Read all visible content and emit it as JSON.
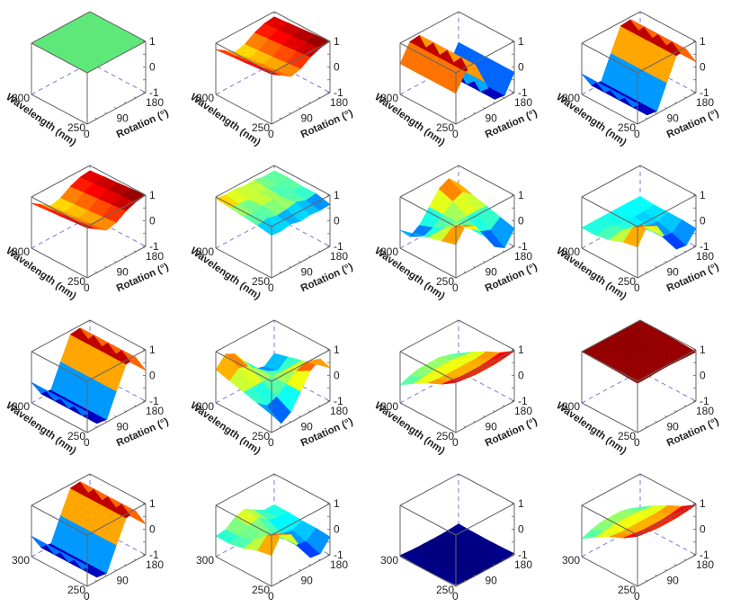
{
  "chart_data": {
    "type": "surface-grid",
    "layout": {
      "rows": 4,
      "cols": 4
    },
    "colormap": "jet",
    "axes": {
      "x": {
        "label": "Rotation (°)",
        "ticks": [
          0,
          90,
          180
        ],
        "range": [
          0,
          180
        ]
      },
      "y": {
        "label": "Wavelength (nm)",
        "ticks": [
          250,
          300
        ],
        "range": [
          250,
          300
        ]
      },
      "z": {
        "label": "",
        "ticks": [
          -1,
          0,
          1
        ],
        "range": [
          -1,
          1
        ]
      }
    },
    "grid_sampling": {
      "rotation": [
        0,
        30,
        60,
        90,
        120,
        150,
        180
      ],
      "wavelength": [
        250,
        262.5,
        275,
        287.5,
        300
      ]
    },
    "panels": [
      {
        "id": 1,
        "row": 1,
        "col": 1,
        "show_axis_titles": true,
        "fixed_color": "#5fe87a",
        "description": "flat surface at z=1",
        "z": [
          [
            1,
            1,
            1,
            1,
            1,
            1,
            1
          ],
          [
            1,
            1,
            1,
            1,
            1,
            1,
            1
          ],
          [
            1,
            1,
            1,
            1,
            1,
            1,
            1
          ],
          [
            1,
            1,
            1,
            1,
            1,
            1,
            1
          ],
          [
            1,
            1,
            1,
            1,
            1,
            1,
            1
          ]
        ]
      },
      {
        "id": 2,
        "row": 1,
        "col": 2,
        "show_axis_titles": true,
        "description": "smooth low-amplitude surface, red/yellow/green",
        "z": [
          [
            0.95,
            0.7,
            0.45,
            0.55,
            0.8,
            0.95,
            1.0
          ],
          [
            0.9,
            0.65,
            0.4,
            0.5,
            0.75,
            0.9,
            0.95
          ],
          [
            0.85,
            0.6,
            0.35,
            0.45,
            0.7,
            0.85,
            0.9
          ],
          [
            0.8,
            0.55,
            0.3,
            0.4,
            0.65,
            0.8,
            0.85
          ],
          [
            0.75,
            0.5,
            0.25,
            0.35,
            0.6,
            0.75,
            0.8
          ]
        ]
      },
      {
        "id": 3,
        "row": 1,
        "col": 3,
        "show_axis_titles": true,
        "description": "stripes along wavelength: red peak ~45°, blue trough ~135°",
        "z": [
          [
            0.2,
            0.85,
            0.9,
            0.0,
            -0.85,
            -0.9,
            -0.2
          ],
          [
            0.2,
            0.85,
            0.9,
            0.0,
            -0.85,
            -0.9,
            -0.2
          ],
          [
            0.2,
            0.85,
            0.9,
            0.0,
            -0.85,
            -0.9,
            -0.2
          ],
          [
            0.2,
            0.85,
            0.9,
            0.0,
            -0.85,
            -0.9,
            -0.2
          ],
          [
            0.2,
            0.85,
            0.9,
            0.0,
            -0.85,
            -0.9,
            -0.2
          ]
        ]
      },
      {
        "id": 4,
        "row": 1,
        "col": 4,
        "show_axis_titles": true,
        "description": "stripes: blue trough ~45°, red peak ~135°",
        "z": [
          [
            -0.2,
            -0.85,
            -0.9,
            0.0,
            0.85,
            0.9,
            0.2
          ],
          [
            -0.2,
            -0.85,
            -0.9,
            0.0,
            0.85,
            0.9,
            0.2
          ],
          [
            -0.2,
            -0.85,
            -0.9,
            0.0,
            0.85,
            0.9,
            0.2
          ],
          [
            -0.2,
            -0.85,
            -0.9,
            0.0,
            0.85,
            0.9,
            0.2
          ],
          [
            -0.2,
            -0.85,
            -0.9,
            0.0,
            0.85,
            0.9,
            0.2
          ]
        ]
      },
      {
        "id": 5,
        "row": 2,
        "col": 1,
        "show_axis_titles": true,
        "description": "smooth low-amplitude surface, red/yellow/green",
        "z": [
          [
            0.95,
            0.7,
            0.45,
            0.55,
            0.8,
            0.95,
            1.0
          ],
          [
            0.9,
            0.65,
            0.4,
            0.5,
            0.75,
            0.9,
            0.95
          ],
          [
            0.85,
            0.6,
            0.35,
            0.45,
            0.7,
            0.85,
            0.9
          ],
          [
            0.8,
            0.55,
            0.3,
            0.4,
            0.65,
            0.8,
            0.85
          ],
          [
            0.75,
            0.5,
            0.25,
            0.35,
            0.6,
            0.75,
            0.8
          ]
        ]
      },
      {
        "id": 6,
        "row": 2,
        "col": 2,
        "show_axis_titles": true,
        "z_offset": 1.0,
        "description": "noisy surface near z=1, mostly cyan with yellow/orange patches and blue at front",
        "z": [
          [
            -0.55,
            -0.7,
            -0.4,
            -0.8,
            -0.6,
            -0.75,
            -0.65
          ],
          [
            -0.2,
            0.1,
            -0.3,
            -0.1,
            0.2,
            -0.35,
            -0.1
          ],
          [
            0.05,
            -0.25,
            0.15,
            0.3,
            -0.2,
            0.0,
            -0.15
          ],
          [
            0.3,
            0.1,
            -0.1,
            0.2,
            0.0,
            -0.2,
            0.05
          ],
          [
            0.55,
            0.35,
            0.4,
            0.1,
            0.2,
            -0.1,
            0.0
          ]
        ]
      },
      {
        "id": 7,
        "row": 2,
        "col": 3,
        "show_axis_titles": true,
        "description": "quadrant pattern: red front-left, blue front-right, blue back-left, orange back-right",
        "z": [
          [
            0.3,
            0.85,
            0.6,
            0.0,
            -0.6,
            -0.85,
            -0.3
          ],
          [
            0.15,
            0.45,
            0.3,
            0.0,
            -0.3,
            -0.45,
            -0.15
          ],
          [
            0.0,
            0.0,
            0.0,
            0.0,
            0.0,
            0.0,
            0.0
          ],
          [
            -0.15,
            -0.45,
            -0.3,
            0.0,
            0.3,
            0.45,
            0.15
          ],
          [
            -0.3,
            -0.75,
            -0.5,
            0.0,
            0.5,
            0.7,
            0.3
          ]
        ]
      },
      {
        "id": 8,
        "row": 2,
        "col": 4,
        "show_axis_titles": true,
        "description": "red front-left, blue front-right, cyan background",
        "z": [
          [
            0.2,
            0.85,
            0.6,
            -0.1,
            -0.7,
            -0.75,
            -0.3
          ],
          [
            0.1,
            0.5,
            0.3,
            -0.1,
            -0.5,
            -0.55,
            -0.25
          ],
          [
            -0.1,
            0.0,
            -0.1,
            -0.2,
            -0.35,
            -0.4,
            -0.25
          ],
          [
            -0.2,
            -0.15,
            -0.2,
            -0.25,
            -0.3,
            -0.3,
            -0.25
          ],
          [
            -0.2,
            -0.2,
            -0.2,
            -0.2,
            -0.2,
            -0.2,
            -0.2
          ]
        ]
      },
      {
        "id": 9,
        "row": 3,
        "col": 1,
        "show_axis_titles": true,
        "description": "stripes: blue trough ~45°, red peak ~135°",
        "z": [
          [
            -0.2,
            -0.85,
            -0.9,
            0.0,
            0.85,
            0.9,
            0.2
          ],
          [
            -0.2,
            -0.85,
            -0.9,
            0.0,
            0.85,
            0.9,
            0.2
          ],
          [
            -0.2,
            -0.85,
            -0.9,
            0.0,
            0.85,
            0.9,
            0.2
          ],
          [
            -0.2,
            -0.85,
            -0.9,
            0.0,
            0.85,
            0.9,
            0.2
          ],
          [
            -0.2,
            -0.85,
            -0.9,
            0.0,
            0.85,
            0.9,
            0.2
          ]
        ]
      },
      {
        "id": 10,
        "row": 3,
        "col": 2,
        "show_axis_titles": true,
        "description": "quadrant pattern: blue front-left, red front-right, orange back-left, blue back-right",
        "z": [
          [
            -0.3,
            -0.85,
            -0.6,
            0.0,
            0.6,
            0.85,
            0.3
          ],
          [
            -0.15,
            -0.45,
            -0.3,
            0.0,
            0.3,
            0.45,
            0.15
          ],
          [
            0.0,
            0.0,
            0.0,
            0.0,
            0.0,
            0.0,
            0.0
          ],
          [
            0.15,
            0.45,
            0.3,
            0.0,
            -0.3,
            -0.45,
            -0.15
          ],
          [
            0.3,
            0.7,
            0.5,
            0.0,
            -0.5,
            -0.6,
            -0.3
          ]
        ]
      },
      {
        "id": 11,
        "row": 3,
        "col": 3,
        "show_axis_titles": true,
        "description": "smooth dome, red at front edge (250 nm), cyan at back (300 nm), yellow center",
        "z": [
          [
            0.95,
            0.9,
            0.85,
            0.85,
            0.85,
            0.9,
            0.95
          ],
          [
            0.6,
            0.55,
            0.5,
            0.5,
            0.5,
            0.55,
            0.6
          ],
          [
            0.35,
            0.3,
            0.3,
            0.3,
            0.3,
            0.3,
            0.35
          ],
          [
            0.05,
            0.1,
            0.15,
            0.15,
            0.15,
            0.1,
            0.05
          ],
          [
            -0.3,
            -0.15,
            -0.05,
            -0.05,
            -0.05,
            -0.15,
            -0.3
          ]
        ]
      },
      {
        "id": 12,
        "row": 3,
        "col": 4,
        "show_axis_titles": true,
        "description": "flat dark-red surface near z=1",
        "z": [
          [
            0.92,
            0.93,
            0.95,
            0.96,
            0.95,
            0.93,
            0.92
          ],
          [
            0.95,
            0.96,
            0.97,
            0.98,
            0.97,
            0.96,
            0.95
          ],
          [
            0.97,
            0.98,
            0.99,
            1.0,
            0.99,
            0.98,
            0.97
          ],
          [
            0.98,
            0.99,
            1.0,
            1.0,
            1.0,
            0.99,
            0.98
          ],
          [
            1.0,
            1.0,
            1.0,
            1.0,
            1.0,
            1.0,
            1.0
          ]
        ]
      },
      {
        "id": 13,
        "row": 4,
        "col": 1,
        "show_axis_titles": false,
        "description": "stripes: blue trough ~45°, red peak ~135°",
        "z": [
          [
            -0.2,
            -0.85,
            -0.9,
            0.0,
            0.85,
            0.9,
            0.2
          ],
          [
            -0.2,
            -0.85,
            -0.9,
            0.0,
            0.85,
            0.9,
            0.2
          ],
          [
            -0.2,
            -0.85,
            -0.9,
            0.0,
            0.85,
            0.9,
            0.2
          ],
          [
            -0.2,
            -0.85,
            -0.9,
            0.0,
            0.85,
            0.9,
            0.2
          ],
          [
            -0.2,
            -0.85,
            -0.9,
            0.0,
            0.85,
            0.9,
            0.2
          ]
        ]
      },
      {
        "id": 14,
        "row": 4,
        "col": 2,
        "show_axis_titles": false,
        "description": "red front-left, blue front-right, cyan/yellow background",
        "z": [
          [
            0.2,
            0.85,
            0.6,
            -0.1,
            -0.7,
            -0.75,
            -0.3
          ],
          [
            0.1,
            0.5,
            0.3,
            -0.1,
            -0.5,
            -0.55,
            -0.25
          ],
          [
            -0.1,
            0.0,
            -0.1,
            -0.2,
            -0.35,
            -0.4,
            -0.25
          ],
          [
            -0.2,
            -0.1,
            0.1,
            0.2,
            -0.1,
            -0.2,
            -0.2
          ],
          [
            -0.2,
            -0.15,
            0.15,
            0.25,
            0.0,
            -0.2,
            -0.2
          ]
        ]
      },
      {
        "id": 15,
        "row": 4,
        "col": 3,
        "show_axis_titles": false,
        "description": "flat blue surface near z=-1",
        "z": [
          [
            -0.95,
            -0.98,
            -1.0,
            -1.0,
            -1.0,
            -0.98,
            -0.95
          ],
          [
            -0.97,
            -1.0,
            -1.0,
            -1.0,
            -1.0,
            -1.0,
            -0.97
          ],
          [
            -0.98,
            -1.0,
            -1.0,
            -1.0,
            -1.0,
            -1.0,
            -0.98
          ],
          [
            -0.97,
            -1.0,
            -1.0,
            -1.0,
            -1.0,
            -1.0,
            -0.97
          ],
          [
            -0.95,
            -0.98,
            -1.0,
            -1.0,
            -1.0,
            -0.98,
            -0.95
          ]
        ]
      },
      {
        "id": 16,
        "row": 4,
        "col": 4,
        "show_axis_titles": false,
        "description": "smooth dome, red at front edge, cyan at back, yellow center",
        "z": [
          [
            0.95,
            0.9,
            0.85,
            0.85,
            0.85,
            0.9,
            0.95
          ],
          [
            0.6,
            0.55,
            0.5,
            0.5,
            0.5,
            0.55,
            0.6
          ],
          [
            0.35,
            0.3,
            0.3,
            0.3,
            0.3,
            0.3,
            0.35
          ],
          [
            0.05,
            0.1,
            0.15,
            0.15,
            0.15,
            0.1,
            0.05
          ],
          [
            -0.3,
            -0.15,
            -0.05,
            -0.05,
            -0.05,
            -0.15,
            -0.3
          ]
        ]
      }
    ]
  },
  "labels": {
    "rotation_axis": "Rotation (°)",
    "wavelength_axis": "Wavelength (nm)",
    "rot_ticks": [
      "0",
      "90",
      "180"
    ],
    "wl_ticks": [
      "250",
      "300"
    ],
    "z_ticks": [
      "1",
      "0",
      "-1"
    ]
  }
}
